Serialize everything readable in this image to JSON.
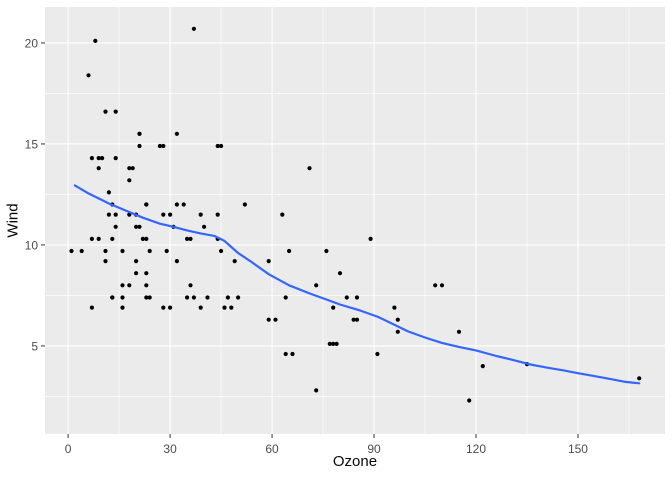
{
  "figure": {
    "background": "#FFFFFF"
  },
  "chart_data": {
    "type": "scatter",
    "title": "",
    "xlabel": "Ozone",
    "ylabel": "Wind",
    "grid": "on",
    "legend": "none",
    "x_ticks": [
      0,
      30,
      60,
      90,
      120,
      150
    ],
    "x_minor_ticks": [
      15,
      45,
      75,
      105,
      135,
      165
    ],
    "y_ticks": [
      5,
      10,
      15,
      20
    ],
    "y_minor_ticks": [
      2.5,
      7.5,
      12.5,
      17.5
    ],
    "x_range": [
      -6.8,
      175.6
    ],
    "y_range": [
      0.64,
      21.78
    ],
    "colors": {
      "panel_background": "#EBEBEB",
      "gridlines": "#FFFFFF",
      "points": "#000000",
      "smooth_line": "#3366FF",
      "tick_labels": "#4D4D4D",
      "tick_marks": "#333333",
      "axis_titles": "#0A0A0A"
    },
    "points": [
      [
        41,
        7.4
      ],
      [
        36,
        8.0
      ],
      [
        12,
        12.6
      ],
      [
        18,
        11.5
      ],
      [
        28,
        14.9
      ],
      [
        23,
        8.6
      ],
      [
        19,
        13.8
      ],
      [
        8,
        20.1
      ],
      [
        7,
        6.9
      ],
      [
        16,
        9.7
      ],
      [
        11,
        9.2
      ],
      [
        14,
        10.9
      ],
      [
        18,
        13.2
      ],
      [
        14,
        11.5
      ],
      [
        34,
        12.0
      ],
      [
        6,
        18.4
      ],
      [
        30,
        11.5
      ],
      [
        11,
        9.7
      ],
      [
        1,
        9.7
      ],
      [
        11,
        16.6
      ],
      [
        4,
        9.7
      ],
      [
        32,
        12.0
      ],
      [
        23,
        12.0
      ],
      [
        45,
        14.9
      ],
      [
        115,
        5.7
      ],
      [
        37,
        7.4
      ],
      [
        29,
        9.7
      ],
      [
        71,
        13.8
      ],
      [
        39,
        11.5
      ],
      [
        23,
        8.0
      ],
      [
        21,
        14.9
      ],
      [
        37,
        20.7
      ],
      [
        20,
        9.2
      ],
      [
        12,
        11.5
      ],
      [
        13,
        10.3
      ],
      [
        135,
        4.1
      ],
      [
        49,
        9.2
      ],
      [
        32,
        9.2
      ],
      [
        64,
        4.6
      ],
      [
        40,
        10.9
      ],
      [
        77,
        5.1
      ],
      [
        97,
        6.3
      ],
      [
        97,
        5.7
      ],
      [
        85,
        7.4
      ],
      [
        10,
        14.3
      ],
      [
        27,
        14.9
      ],
      [
        7,
        14.3
      ],
      [
        48,
        6.9
      ],
      [
        35,
        10.3
      ],
      [
        61,
        6.3
      ],
      [
        79,
        5.1
      ],
      [
        63,
        11.5
      ],
      [
        16,
        6.9
      ],
      [
        80,
        8.6
      ],
      [
        108,
        8.0
      ],
      [
        20,
        8.6
      ],
      [
        52,
        12.0
      ],
      [
        82,
        7.4
      ],
      [
        50,
        7.4
      ],
      [
        64,
        7.4
      ],
      [
        59,
        9.2
      ],
      [
        39,
        6.9
      ],
      [
        9,
        13.8
      ],
      [
        16,
        7.4
      ],
      [
        78,
        6.9
      ],
      [
        35,
        7.4
      ],
      [
        66,
        4.6
      ],
      [
        122,
        4.0
      ],
      [
        89,
        10.3
      ],
      [
        110,
        8.0
      ],
      [
        44,
        11.5
      ],
      [
        28,
        11.5
      ],
      [
        65,
        9.7
      ],
      [
        22,
        10.3
      ],
      [
        59,
        6.3
      ],
      [
        23,
        7.4
      ],
      [
        31,
        10.9
      ],
      [
        44,
        10.3
      ],
      [
        21,
        15.5
      ],
      [
        9,
        14.3
      ],
      [
        45,
        9.7
      ],
      [
        168,
        3.4
      ],
      [
        73,
        8.0
      ],
      [
        76,
        9.7
      ],
      [
        118,
        2.3
      ],
      [
        84,
        6.3
      ],
      [
        85,
        6.3
      ],
      [
        96,
        6.9
      ],
      [
        78,
        5.1
      ],
      [
        73,
        2.8
      ],
      [
        91,
        4.6
      ],
      [
        47,
        7.4
      ],
      [
        32,
        15.5
      ],
      [
        20,
        10.9
      ],
      [
        23,
        10.3
      ],
      [
        21,
        10.9
      ],
      [
        24,
        9.7
      ],
      [
        44,
        14.9
      ],
      [
        21,
        15.5
      ],
      [
        28,
        6.9
      ],
      [
        9,
        10.3
      ],
      [
        13,
        7.4
      ],
      [
        46,
        6.9
      ],
      [
        18,
        13.8
      ],
      [
        13,
        7.4
      ],
      [
        24,
        7.4
      ],
      [
        16,
        8.0
      ],
      [
        13,
        12.0
      ],
      [
        23,
        12.0
      ],
      [
        36,
        10.3
      ],
      [
        7,
        10.3
      ],
      [
        14,
        16.6
      ],
      [
        30,
        6.9
      ],
      [
        14,
        14.3
      ],
      [
        18,
        8.0
      ],
      [
        20,
        11.5
      ]
    ],
    "smooth_line": {
      "name": "loess-smooth",
      "points": [
        [
          2,
          12.95
        ],
        [
          6,
          12.55
        ],
        [
          12,
          12.05
        ],
        [
          17,
          11.7
        ],
        [
          22,
          11.35
        ],
        [
          27,
          11.05
        ],
        [
          31,
          10.9
        ],
        [
          35,
          10.72
        ],
        [
          39,
          10.57
        ],
        [
          43,
          10.45
        ],
        [
          46,
          10.2
        ],
        [
          50,
          9.6
        ],
        [
          54,
          9.15
        ],
        [
          59,
          8.55
        ],
        [
          65,
          8.0
        ],
        [
          71,
          7.6
        ],
        [
          76,
          7.3
        ],
        [
          80,
          7.05
        ],
        [
          86,
          6.75
        ],
        [
          91,
          6.45
        ],
        [
          96,
          6.05
        ],
        [
          100,
          5.72
        ],
        [
          105,
          5.42
        ],
        [
          110,
          5.15
        ],
        [
          115,
          4.95
        ],
        [
          120,
          4.78
        ],
        [
          126,
          4.5
        ],
        [
          131,
          4.3
        ],
        [
          136,
          4.08
        ],
        [
          141,
          3.92
        ],
        [
          146,
          3.78
        ],
        [
          150,
          3.65
        ],
        [
          155,
          3.5
        ],
        [
          160,
          3.35
        ],
        [
          164,
          3.22
        ],
        [
          168,
          3.15
        ]
      ]
    }
  }
}
